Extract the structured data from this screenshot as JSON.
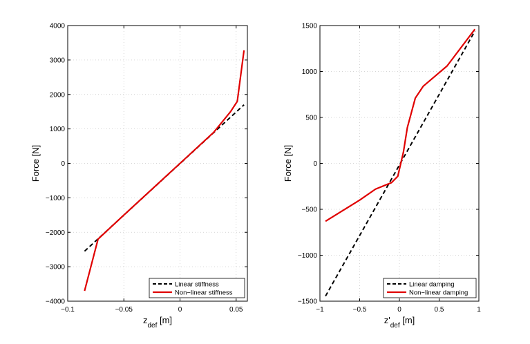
{
  "colors": {
    "linear": "#000000",
    "nonlinear": "#e00000",
    "grid": "#c8c8c8",
    "axis": "#000000"
  },
  "chart_data": [
    {
      "type": "line",
      "xlabel": {
        "main": "z",
        "sub": "def",
        "unit": " [m]"
      },
      "ylabel": "Force [N]",
      "xlim": [
        -0.1,
        0.06
      ],
      "ylim": [
        -4000,
        4000
      ],
      "xticks": [
        -0.1,
        -0.05,
        0,
        0.05
      ],
      "xtick_labels": [
        "−0.1",
        "−0.05",
        "0",
        "0.05"
      ],
      "yticks": [
        -4000,
        -3000,
        -2000,
        -1000,
        0,
        1000,
        2000,
        3000,
        4000
      ],
      "ytick_labels": [
        "−4000",
        "−3000",
        "−2000",
        "−1000",
        "0",
        "1000",
        "2000",
        "3000",
        "4000"
      ],
      "grid": true,
      "legend_position": "bottom-right",
      "series": [
        {
          "name": "Linear stiffness",
          "style": "dashed",
          "color": "#000000",
          "x": [
            -0.085,
            0.057
          ],
          "y": [
            -2550,
            1700
          ]
        },
        {
          "name": "Non−linear stiffness",
          "style": "solid",
          "color": "#e00000",
          "x": [
            -0.085,
            -0.073,
            -0.05,
            0,
            0.03,
            0.045,
            0.051,
            0.057
          ],
          "y": [
            -3700,
            -2200,
            -1500,
            0,
            900,
            1500,
            1800,
            3280
          ]
        }
      ]
    },
    {
      "type": "line",
      "xlabel": {
        "main": "z'",
        "sub": "def",
        "unit": " [m]"
      },
      "ylabel": "Force [N]",
      "xlim": [
        -1,
        1
      ],
      "ylim": [
        -1500,
        1500
      ],
      "xticks": [
        -1,
        -0.5,
        0,
        0.5,
        1
      ],
      "xtick_labels": [
        "−1",
        "−0.5",
        "0",
        "0.5",
        "1"
      ],
      "yticks": [
        -1500,
        -1000,
        -500,
        0,
        500,
        1000,
        1500
      ],
      "ytick_labels": [
        "−1500",
        "−1000",
        "−500",
        "0",
        "500",
        "1000",
        "1500"
      ],
      "grid": true,
      "legend_position": "bottom-right",
      "series": [
        {
          "name": "Linear damping",
          "style": "dashed",
          "color": "#000000",
          "x": [
            -0.93,
            0.95
          ],
          "y": [
            -1445,
            1440
          ]
        },
        {
          "name": "Non−linear damping",
          "style": "solid",
          "color": "#e00000",
          "x": [
            -0.93,
            -0.5,
            -0.3,
            -0.1,
            -0.02,
            0.05,
            0.1,
            0.2,
            0.3,
            0.6,
            0.95
          ],
          "y": [
            -630,
            -400,
            -280,
            -210,
            -140,
            120,
            390,
            710,
            840,
            1060,
            1460
          ]
        }
      ]
    }
  ]
}
